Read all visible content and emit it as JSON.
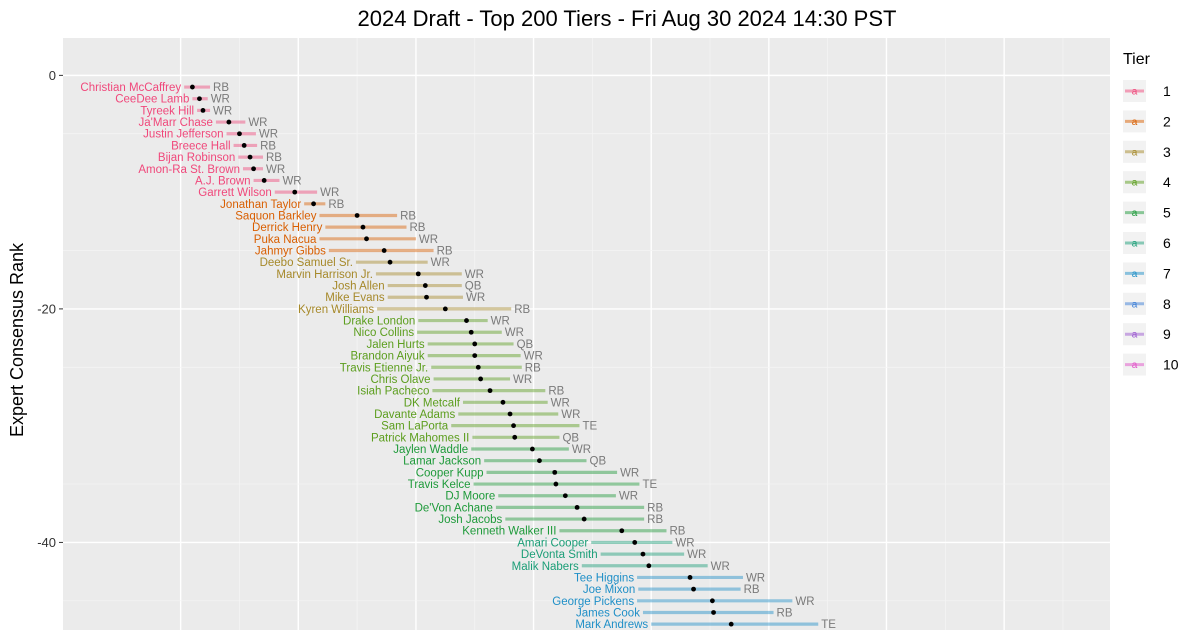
{
  "chart_data": {
    "type": "scatter",
    "title": "2024 Draft - Top 200 Tiers - Fri Aug 30 2024 14:30 PST",
    "ylabel": "Expert Consensus Rank",
    "xlabel": "",
    "ylim": [
      -47.5,
      3.2
    ],
    "xlim": [
      -10,
      79
    ],
    "y_ticks": [
      0,
      -20,
      -40
    ],
    "grid": true,
    "legend": {
      "title": "Tier",
      "position": "right",
      "glyph": "a",
      "entries": [
        {
          "tier": "1",
          "color": "#f0487b"
        },
        {
          "tier": "2",
          "color": "#d95f02"
        },
        {
          "tier": "3",
          "color": "#a6892a"
        },
        {
          "tier": "4",
          "color": "#5c9e1e"
        },
        {
          "tier": "5",
          "color": "#1e9a3a"
        },
        {
          "tier": "6",
          "color": "#1b9e77"
        },
        {
          "tier": "7",
          "color": "#1f8fc7"
        },
        {
          "tier": "8",
          "color": "#3b7ed6"
        },
        {
          "tier": "9",
          "color": "#9b59d0"
        },
        {
          "tier": "10",
          "color": "#e052c8"
        }
      ]
    },
    "players": [
      {
        "name": "Christian McCaffrey",
        "pos": "RB",
        "rank": 1,
        "tier": 1,
        "avg": 1.0,
        "lo": 0.3,
        "hi": 2.5
      },
      {
        "name": "CeeDee Lamb",
        "pos": "WR",
        "rank": 2,
        "tier": 1,
        "avg": 1.6,
        "lo": 1.0,
        "hi": 2.3
      },
      {
        "name": "Tyreek Hill",
        "pos": "WR",
        "rank": 3,
        "tier": 1,
        "avg": 1.9,
        "lo": 1.4,
        "hi": 2.5
      },
      {
        "name": "Ja'Marr Chase",
        "pos": "WR",
        "rank": 4,
        "tier": 1,
        "avg": 4.1,
        "lo": 3.0,
        "hi": 5.5
      },
      {
        "name": "Justin Jefferson",
        "pos": "WR",
        "rank": 5,
        "tier": 1,
        "avg": 5.0,
        "lo": 3.9,
        "hi": 6.4
      },
      {
        "name": "Breece Hall",
        "pos": "RB",
        "rank": 6,
        "tier": 1,
        "avg": 5.4,
        "lo": 4.5,
        "hi": 6.5
      },
      {
        "name": "Bijan Robinson",
        "pos": "RB",
        "rank": 7,
        "tier": 1,
        "avg": 5.9,
        "lo": 4.9,
        "hi": 7.0
      },
      {
        "name": "Amon-Ra St. Brown",
        "pos": "WR",
        "rank": 8,
        "tier": 1,
        "avg": 6.2,
        "lo": 5.3,
        "hi": 7.0
      },
      {
        "name": "A.J. Brown",
        "pos": "WR",
        "rank": 9,
        "tier": 1,
        "avg": 7.1,
        "lo": 6.2,
        "hi": 8.4
      },
      {
        "name": "Garrett Wilson",
        "pos": "WR",
        "rank": 10,
        "tier": 1,
        "avg": 9.7,
        "lo": 8.0,
        "hi": 11.6
      },
      {
        "name": "Jonathan Taylor",
        "pos": "RB",
        "rank": 11,
        "tier": 2,
        "avg": 11.3,
        "lo": 10.5,
        "hi": 12.3
      },
      {
        "name": "Saquon Barkley",
        "pos": "RB",
        "rank": 12,
        "tier": 2,
        "avg": 15.0,
        "lo": 11.8,
        "hi": 18.4
      },
      {
        "name": "Derrick Henry",
        "pos": "RB",
        "rank": 13,
        "tier": 2,
        "avg": 15.5,
        "lo": 12.3,
        "hi": 19.2
      },
      {
        "name": "Puka Nacua",
        "pos": "WR",
        "rank": 14,
        "tier": 2,
        "avg": 15.8,
        "lo": 11.8,
        "hi": 20.0
      },
      {
        "name": "Jahmyr Gibbs",
        "pos": "RB",
        "rank": 15,
        "tier": 2,
        "avg": 17.3,
        "lo": 12.6,
        "hi": 21.5
      },
      {
        "name": "Deebo Samuel Sr.",
        "pos": "WR",
        "rank": 16,
        "tier": 3,
        "avg": 17.8,
        "lo": 14.9,
        "hi": 21.0
      },
      {
        "name": "Marvin Harrison Jr.",
        "pos": "WR",
        "rank": 17,
        "tier": 3,
        "avg": 20.2,
        "lo": 16.6,
        "hi": 23.9
      },
      {
        "name": "Josh Allen",
        "pos": "QB",
        "rank": 18,
        "tier": 3,
        "avg": 20.8,
        "lo": 17.6,
        "hi": 23.9
      },
      {
        "name": "Mike Evans",
        "pos": "WR",
        "rank": 19,
        "tier": 3,
        "avg": 20.9,
        "lo": 17.6,
        "hi": 24.0
      },
      {
        "name": "Kyren Williams",
        "pos": "RB",
        "rank": 20,
        "tier": 3,
        "avg": 22.5,
        "lo": 16.7,
        "hi": 28.1
      },
      {
        "name": "Drake London",
        "pos": "WR",
        "rank": 21,
        "tier": 4,
        "avg": 24.3,
        "lo": 20.2,
        "hi": 26.1
      },
      {
        "name": "Nico Collins",
        "pos": "WR",
        "rank": 22,
        "tier": 4,
        "avg": 24.7,
        "lo": 20.1,
        "hi": 27.3
      },
      {
        "name": "Jalen Hurts",
        "pos": "QB",
        "rank": 23,
        "tier": 4,
        "avg": 25.0,
        "lo": 21.0,
        "hi": 28.3
      },
      {
        "name": "Brandon Aiyuk",
        "pos": "WR",
        "rank": 24,
        "tier": 4,
        "avg": 25.0,
        "lo": 21.0,
        "hi": 28.9
      },
      {
        "name": "Travis Etienne Jr.",
        "pos": "RB",
        "rank": 25,
        "tier": 4,
        "avg": 25.3,
        "lo": 21.3,
        "hi": 29.0
      },
      {
        "name": "Chris Olave",
        "pos": "WR",
        "rank": 26,
        "tier": 4,
        "avg": 25.5,
        "lo": 21.5,
        "hi": 28.0
      },
      {
        "name": "Isiah Pacheco",
        "pos": "RB",
        "rank": 27,
        "tier": 4,
        "avg": 26.3,
        "lo": 21.4,
        "hi": 31.0
      },
      {
        "name": "DK Metcalf",
        "pos": "WR",
        "rank": 28,
        "tier": 4,
        "avg": 27.4,
        "lo": 24.0,
        "hi": 31.2
      },
      {
        "name": "Davante Adams",
        "pos": "WR",
        "rank": 29,
        "tier": 4,
        "avg": 28.0,
        "lo": 23.6,
        "hi": 32.1
      },
      {
        "name": "Sam LaPorta",
        "pos": "TE",
        "rank": 30,
        "tier": 4,
        "avg": 28.3,
        "lo": 23.0,
        "hi": 33.9
      },
      {
        "name": "Patrick Mahomes II",
        "pos": "QB",
        "rank": 31,
        "tier": 4,
        "avg": 28.4,
        "lo": 24.8,
        "hi": 32.2
      },
      {
        "name": "Jaylen Waddle",
        "pos": "WR",
        "rank": 32,
        "tier": 5,
        "avg": 29.9,
        "lo": 24.7,
        "hi": 33.0
      },
      {
        "name": "Lamar Jackson",
        "pos": "QB",
        "rank": 33,
        "tier": 5,
        "avg": 30.5,
        "lo": 25.8,
        "hi": 34.5
      },
      {
        "name": "Cooper Kupp",
        "pos": "WR",
        "rank": 34,
        "tier": 5,
        "avg": 31.8,
        "lo": 26.0,
        "hi": 37.1
      },
      {
        "name": "Travis Kelce",
        "pos": "TE",
        "rank": 35,
        "tier": 5,
        "avg": 31.9,
        "lo": 24.9,
        "hi": 39.0
      },
      {
        "name": "DJ Moore",
        "pos": "WR",
        "rank": 36,
        "tier": 5,
        "avg": 32.7,
        "lo": 27.0,
        "hi": 37.0
      },
      {
        "name": "De'Von Achane",
        "pos": "RB",
        "rank": 37,
        "tier": 5,
        "avg": 33.7,
        "lo": 26.8,
        "hi": 39.4
      },
      {
        "name": "Josh Jacobs",
        "pos": "RB",
        "rank": 38,
        "tier": 5,
        "avg": 34.3,
        "lo": 27.6,
        "hi": 39.4
      },
      {
        "name": "Kenneth Walker III",
        "pos": "RB",
        "rank": 39,
        "tier": 5,
        "avg": 37.5,
        "lo": 32.2,
        "hi": 41.3
      },
      {
        "name": "Amari Cooper",
        "pos": "WR",
        "rank": 40,
        "tier": 6,
        "avg": 38.6,
        "lo": 34.9,
        "hi": 41.8
      },
      {
        "name": "DeVonta Smith",
        "pos": "WR",
        "rank": 41,
        "tier": 6,
        "avg": 39.3,
        "lo": 35.7,
        "hi": 42.8
      },
      {
        "name": "Malik Nabers",
        "pos": "WR",
        "rank": 42,
        "tier": 6,
        "avg": 39.8,
        "lo": 34.1,
        "hi": 44.8
      },
      {
        "name": "Tee Higgins",
        "pos": "WR",
        "rank": 43,
        "tier": 7,
        "avg": 43.3,
        "lo": 38.8,
        "hi": 47.8
      },
      {
        "name": "Joe Mixon",
        "pos": "RB",
        "rank": 44,
        "tier": 7,
        "avg": 43.6,
        "lo": 38.9,
        "hi": 47.6
      },
      {
        "name": "George Pickens",
        "pos": "WR",
        "rank": 45,
        "tier": 7,
        "avg": 45.2,
        "lo": 38.8,
        "hi": 52.0
      },
      {
        "name": "James Cook",
        "pos": "RB",
        "rank": 46,
        "tier": 7,
        "avg": 45.3,
        "lo": 39.3,
        "hi": 50.4
      },
      {
        "name": "Mark Andrews",
        "pos": "TE",
        "rank": 47,
        "tier": 7,
        "avg": 46.8,
        "lo": 40.0,
        "hi": 54.2
      }
    ]
  }
}
